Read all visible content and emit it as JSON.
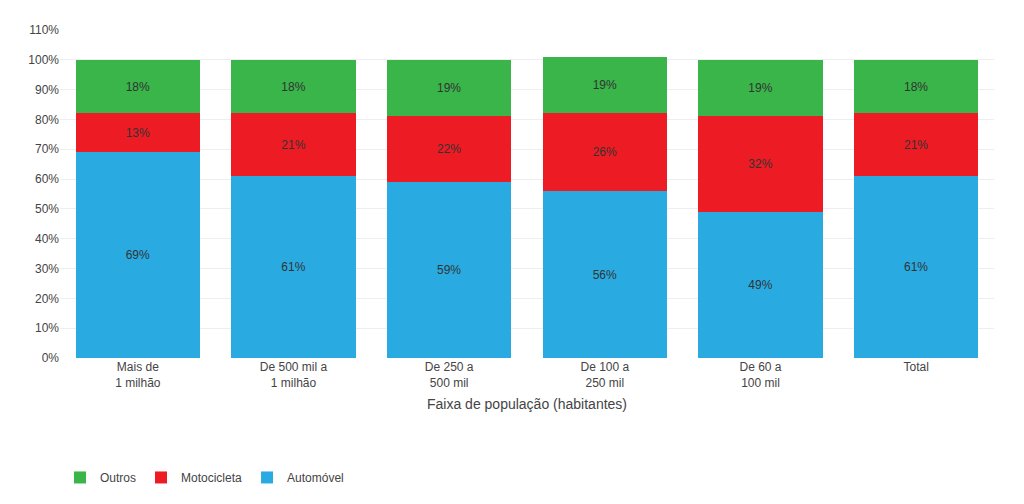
{
  "chart_data": {
    "type": "bar",
    "stacked": true,
    "categories": [
      "Mais de\n1 milhão",
      "De 500 mil a\n1 milhão",
      "De 250 a\n500 mil",
      "De 100 a\n250 mil",
      "De 60 a\n100 mil",
      "Total"
    ],
    "series": [
      {
        "name": "Automóvel",
        "color": "#29ABE2",
        "values": [
          69,
          61,
          59,
          56,
          49,
          61
        ],
        "value_labels": [
          "69%",
          "61%",
          "59%",
          "56%",
          "49%",
          "61%"
        ]
      },
      {
        "name": "Motocicleta",
        "color": "#ED1C24",
        "values": [
          13,
          21,
          22,
          26,
          32,
          21
        ],
        "value_labels": [
          "13%",
          "21%",
          "22%",
          "26%",
          "32%",
          "21%"
        ]
      },
      {
        "name": "Outros",
        "color": "#39B54A",
        "values": [
          18,
          18,
          19,
          19,
          19,
          18
        ],
        "value_labels": [
          "18%",
          "18%",
          "19%",
          "19%",
          "19%",
          "18%"
        ]
      }
    ],
    "x_label": "Faixa de população (habitantes)",
    "ylim": [
      0,
      110
    ],
    "yticks": [
      {
        "value": 0,
        "label": "0%"
      },
      {
        "value": 10,
        "label": "10%"
      },
      {
        "value": 20,
        "label": "20%"
      },
      {
        "value": 30,
        "label": "30%"
      },
      {
        "value": 40,
        "label": "40%"
      },
      {
        "value": 50,
        "label": "50%"
      },
      {
        "value": 60,
        "label": "60%"
      },
      {
        "value": 70,
        "label": "70%"
      },
      {
        "value": 80,
        "label": "80%"
      },
      {
        "value": 90,
        "label": "90%"
      },
      {
        "value": 100,
        "label": "100%"
      },
      {
        "value": 110,
        "label": "110%"
      }
    ],
    "grid": true,
    "data_labels": true,
    "legend": "bottom"
  }
}
